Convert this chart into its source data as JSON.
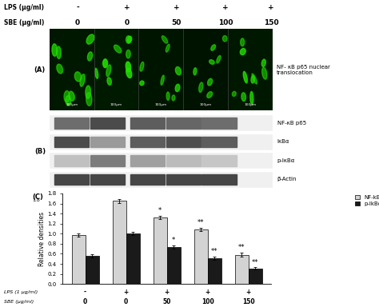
{
  "lps_labels": [
    "-",
    "+",
    "+",
    "+",
    "+"
  ],
  "sbe_labels": [
    "0",
    "0",
    "50",
    "100",
    "150"
  ],
  "nfkb_values": [
    0.97,
    1.65,
    1.32,
    1.08,
    0.58
  ],
  "nfkb_errors": [
    0.03,
    0.04,
    0.03,
    0.03,
    0.04
  ],
  "pikba_values": [
    0.56,
    1.0,
    0.73,
    0.51,
    0.31
  ],
  "pikba_errors": [
    0.03,
    0.03,
    0.03,
    0.03,
    0.02
  ],
  "nfkb_color": "#d3d3d3",
  "pikba_color": "#1a1a1a",
  "ylim": [
    0,
    1.8
  ],
  "yticks": [
    0.0,
    0.2,
    0.4,
    0.6,
    0.8,
    1.0,
    1.2,
    1.4,
    1.6,
    1.8
  ],
  "ylabel": "Relative densities",
  "panel_c_label": "(C)",
  "panel_a_label": "(A)",
  "panel_b_label": "(B)",
  "lps_row_label": "LPS (1 μg/ml)",
  "sbe_row_label": "SBE (μg/ml)",
  "top_lps_label": "LPS (μg/ml)",
  "top_sbe_label": "SBE (μg/ml)",
  "top_lps_vals": [
    "-",
    "+",
    "+",
    "+",
    "+"
  ],
  "top_sbe_vals": [
    "0",
    "0",
    "50",
    "100",
    "150"
  ],
  "western_labels_right": [
    "NF-κB p65",
    "IκBα",
    "p-IκBα",
    "β-Actin"
  ],
  "nfkb_nuclear_label": "NF- κB p65 nuclear\ntranslocation",
  "legend_nfkb": "NF-kB",
  "legend_pikba": "p-IkBα",
  "significance_nfkb": [
    "",
    "",
    "*",
    "**",
    "**"
  ],
  "significance_pikba": [
    "",
    "",
    "*",
    "**",
    "**"
  ],
  "fig_bg": "#ffffff"
}
